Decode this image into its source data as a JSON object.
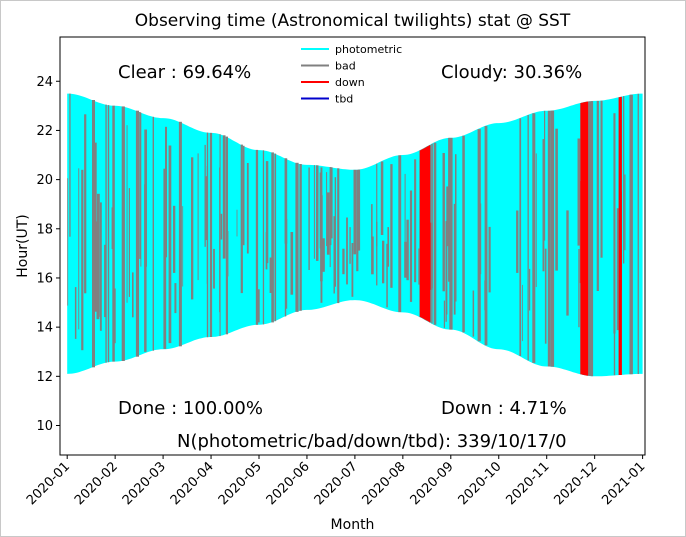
{
  "chart_data": {
    "type": "area",
    "title": "Observing time (Astronomical twilights) stat @ SST",
    "xlabel": "Month",
    "ylabel": "Hour(UT)",
    "ylim": [
      8.8,
      25.8
    ],
    "xlim": [
      -0.15,
      12.05
    ],
    "x_ticks": [
      "2020-01",
      "2020-02",
      "2020-03",
      "2020-04",
      "2020-05",
      "2020-06",
      "2020-07",
      "2020-08",
      "2020-09",
      "2020-10",
      "2020-11",
      "2020-12",
      "2021-01"
    ],
    "y_ticks": [
      10,
      12,
      14,
      16,
      18,
      20,
      22,
      24
    ],
    "legend": [
      {
        "label": "photometric",
        "color": "#00ffff"
      },
      {
        "label": "bad",
        "color": "#808080"
      },
      {
        "label": "down",
        "color": "#ff0000"
      },
      {
        "label": "tbd",
        "color": "#0000cc"
      }
    ],
    "night_window": {
      "start_hour": {
        "month": [
          0,
          1,
          2,
          3,
          4,
          5,
          6,
          7,
          8,
          9,
          10,
          11,
          12
        ],
        "hour": [
          12.1,
          12.6,
          13.1,
          13.6,
          14.1,
          14.7,
          15.1,
          14.6,
          13.9,
          13.1,
          12.4,
          12.0,
          12.1
        ]
      },
      "end_hour": {
        "month": [
          0,
          1,
          2,
          3,
          4,
          5,
          6,
          7,
          8,
          9,
          10,
          11,
          12
        ],
        "hour": [
          23.5,
          23.0,
          22.5,
          21.9,
          21.2,
          20.6,
          20.4,
          21.0,
          21.7,
          22.3,
          22.8,
          23.2,
          23.5
        ]
      }
    },
    "down_periods_month": [
      [
        7.35,
        7.55
      ],
      [
        10.7,
        10.85
      ],
      [
        11.5,
        11.55
      ]
    ],
    "annotations": {
      "clear": "Clear  : 69.64%",
      "cloudy": "Cloudy: 30.36%",
      "done": "Done  : 100.00%",
      "down": "Down  : 4.71%",
      "counts": "N(photometric/bad/down/tbd): 339/10/17/0"
    }
  }
}
